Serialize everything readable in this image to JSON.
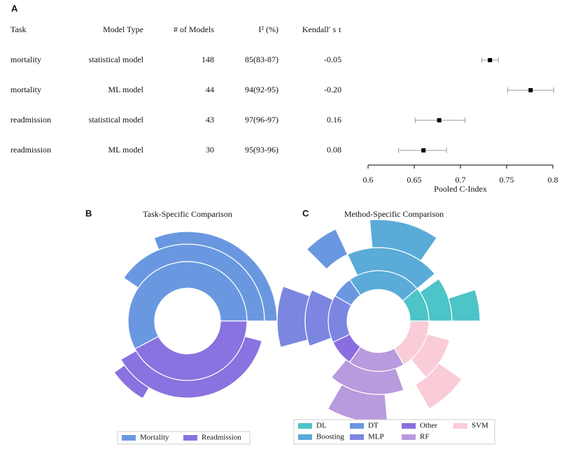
{
  "chart_data": [
    {
      "type": "forest",
      "label": "A",
      "columns": [
        "Task",
        "Model Type",
        "# of Models",
        "I² (%)",
        "Kendall′ s τ"
      ],
      "rows": [
        [
          "mortality",
          "statistical model",
          148,
          "85(83-87)",
          "-0.05"
        ],
        [
          "mortality",
          "ML model",
          44,
          "94(92-95)",
          "-0.20"
        ],
        [
          "readmission",
          "statistical model",
          43,
          "97(96-97)",
          "0.16"
        ],
        [
          "readmission",
          "ML model",
          30,
          "95(93-96)",
          "0.08"
        ]
      ],
      "estimate": [
        0.732,
        0.776,
        0.677,
        0.66
      ],
      "ci_low": [
        0.723,
        0.751,
        0.651,
        0.633
      ],
      "ci_high": [
        0.741,
        0.801,
        0.705,
        0.685
      ],
      "xlim": [
        0.6,
        0.8
      ],
      "xticks": [
        0.6,
        0.65,
        0.7,
        0.75,
        0.8
      ],
      "xlabel": "Pooled C-Index"
    },
    {
      "type": "sunburst",
      "label": "B",
      "title": "Task-Specific Comparison",
      "groups": [
        {
          "name": "Mortality",
          "color": "#6a98e0"
        },
        {
          "name": "Readmission",
          "color": "#8a72e0"
        }
      ],
      "segments": [
        {
          "group": 0,
          "ring": 1,
          "start": 0,
          "end": 208
        },
        {
          "group": 0,
          "ring": 2,
          "start": 0,
          "end": 146
        },
        {
          "group": 0,
          "ring": 3,
          "start": 0,
          "end": 112
        },
        {
          "group": 1,
          "ring": 1,
          "start": 208,
          "end": 360
        },
        {
          "group": 1,
          "ring": 2,
          "start": 210,
          "end": 345
        },
        {
          "group": 1,
          "ring": 3,
          "start": 215,
          "end": 240
        }
      ]
    },
    {
      "type": "sunburst",
      "label": "C",
      "title": "Method-Specific Comparison",
      "groups": [
        {
          "name": "DL",
          "color": "#4cc4c8"
        },
        {
          "name": "Boosting",
          "color": "#5aabd8"
        },
        {
          "name": "DT",
          "color": "#6a98e0"
        },
        {
          "name": "MLP",
          "color": "#7b86e0"
        },
        {
          "name": "Other",
          "color": "#8a6ee0"
        },
        {
          "name": "RF",
          "color": "#b89ade"
        },
        {
          "name": "SVM",
          "color": "#f9ccd8"
        }
      ],
      "segments": [
        {
          "group": 0,
          "ring": 1,
          "start": 0,
          "end": 40
        },
        {
          "group": 0,
          "ring": 2,
          "start": 0,
          "end": 35
        },
        {
          "group": 0,
          "ring": 3,
          "start": 0,
          "end": 18
        },
        {
          "group": 1,
          "ring": 1,
          "start": 40,
          "end": 125
        },
        {
          "group": 1,
          "ring": 2,
          "start": 40,
          "end": 115
        },
        {
          "group": 1,
          "ring": 3,
          "start": 55,
          "end": 95
        },
        {
          "group": 2,
          "ring": 1,
          "start": 125,
          "end": 150
        },
        {
          "group": 2,
          "ring": 3,
          "start": 115,
          "end": 135
        },
        {
          "group": 3,
          "ring": 1,
          "start": 150,
          "end": 205
        },
        {
          "group": 3,
          "ring": 2,
          "start": 155,
          "end": 200
        },
        {
          "group": 3,
          "ring": 3,
          "start": 160,
          "end": 195
        },
        {
          "group": 4,
          "ring": 1,
          "start": 205,
          "end": 235
        },
        {
          "group": 5,
          "ring": 1,
          "start": 235,
          "end": 300
        },
        {
          "group": 5,
          "ring": 2,
          "start": 230,
          "end": 290
        },
        {
          "group": 5,
          "ring": 3,
          "start": 240,
          "end": 275
        },
        {
          "group": 6,
          "ring": 1,
          "start": 300,
          "end": 360
        },
        {
          "group": 6,
          "ring": 2,
          "start": 310,
          "end": 345
        },
        {
          "group": 6,
          "ring": 3,
          "start": 300,
          "end": 325
        }
      ]
    }
  ]
}
